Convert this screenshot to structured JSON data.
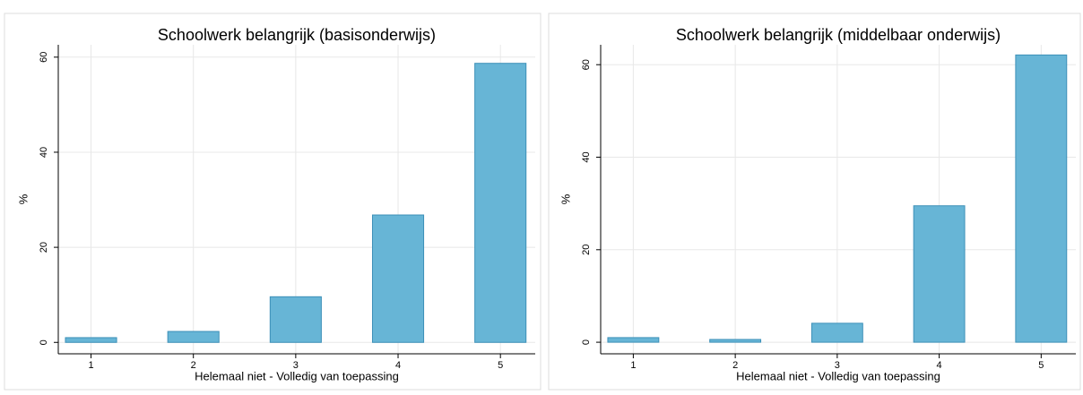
{
  "chart_data": [
    {
      "type": "bar",
      "title": "Schoolwerk belangrijk (basisonderwijs)",
      "x": [
        1,
        2,
        3,
        4,
        5
      ],
      "values": [
        1.0,
        2.3,
        9.6,
        26.8,
        58.7
      ],
      "xlabel": "Helemaal niet - Volledig van toepassing",
      "ylabel": "%",
      "xlim": [
        0.68,
        5.34
      ],
      "xticks": [
        1,
        2,
        3,
        4,
        5
      ],
      "ylim": [
        -2.4,
        62.6
      ],
      "yticks": [
        0,
        20,
        40,
        60
      ],
      "color": "#67b5d6",
      "grid": true
    },
    {
      "type": "bar",
      "title": "Schoolwerk belangrijk (middelbaar onderwijs)",
      "x": [
        1,
        2,
        3,
        4,
        5
      ],
      "values": [
        1.0,
        0.6,
        4.1,
        29.5,
        62.1
      ],
      "xlabel": "Helemaal niet - Volledig van toepassing",
      "ylabel": "%",
      "xlim": [
        0.68,
        5.34
      ],
      "xticks": [
        1,
        2,
        3,
        4,
        5
      ],
      "ylim": [
        -2.5,
        64.3
      ],
      "yticks": [
        0,
        20,
        40,
        60
      ],
      "color": "#67b5d6",
      "grid": true
    }
  ]
}
